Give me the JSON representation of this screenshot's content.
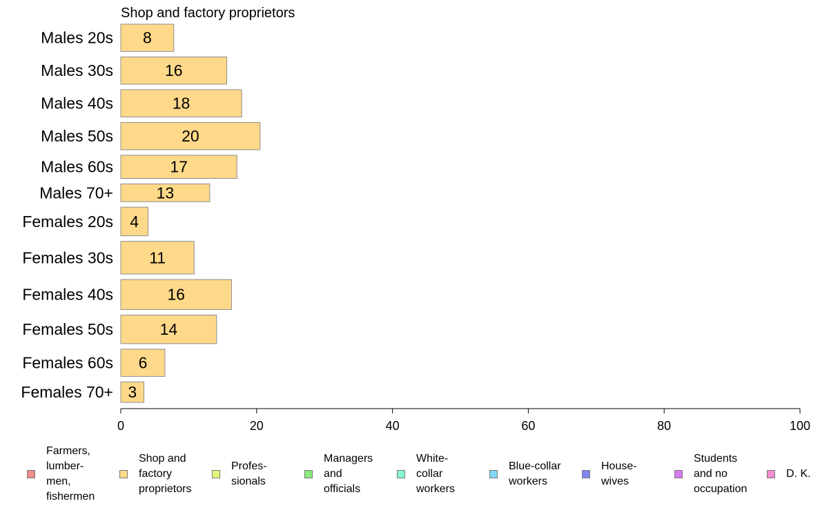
{
  "chart_data": {
    "type": "bar",
    "orientation": "horizontal",
    "title": "Shop and factory proprietors",
    "xlabel": "",
    "ylabel": "",
    "xlim": [
      0,
      100
    ],
    "x_ticks": [
      0,
      20,
      40,
      60,
      80,
      100
    ],
    "categories": [
      "Males 20s",
      "Males 30s",
      "Males 40s",
      "Males 50s",
      "Males 60s",
      "Males 70+",
      "Females 20s",
      "Females 30s",
      "Females 40s",
      "Females 50s",
      "Females 60s",
      "Females 70+"
    ],
    "relative_widths": [
      1.0,
      1.0,
      1.0,
      1.0,
      0.85,
      0.65,
      1.05,
      1.2,
      1.1,
      1.05,
      1.0,
      0.75
    ],
    "series": [
      {
        "name": "Shop and factory proprietors",
        "values": [
          7.8,
          15.6,
          17.8,
          20.5,
          17.1,
          13.1,
          4.0,
          10.8,
          16.3,
          14.1,
          6.5,
          3.4
        ],
        "labels": [
          "8",
          "16",
          "18",
          "20",
          "17",
          "13",
          "4",
          "11",
          "16",
          "14",
          "6",
          "3"
        ],
        "color": "#FFD98A"
      }
    ],
    "grid": false,
    "legend_position": "bottom"
  },
  "legend": [
    {
      "label": "Farmers,\nlumber-\nmen,\nfishermen",
      "color": "#F08C8C"
    },
    {
      "label": "Shop and\nfactory\nproprietors",
      "color": "#FFD98A"
    },
    {
      "label": "Profes-\nsionals",
      "color": "#E6F57A"
    },
    {
      "label": "Managers\nand\nofficials",
      "color": "#8CEB7A"
    },
    {
      "label": "White-\ncollar\nworkers",
      "color": "#85F5D2"
    },
    {
      "label": "Blue-collar\nworkers",
      "color": "#80D8F5"
    },
    {
      "label": "House-\nwives",
      "color": "#8088F0"
    },
    {
      "label": "Students\nand no\noccupation",
      "color": "#D77AF0"
    },
    {
      "label": "D. K.",
      "color": "#F58CD2"
    }
  ]
}
